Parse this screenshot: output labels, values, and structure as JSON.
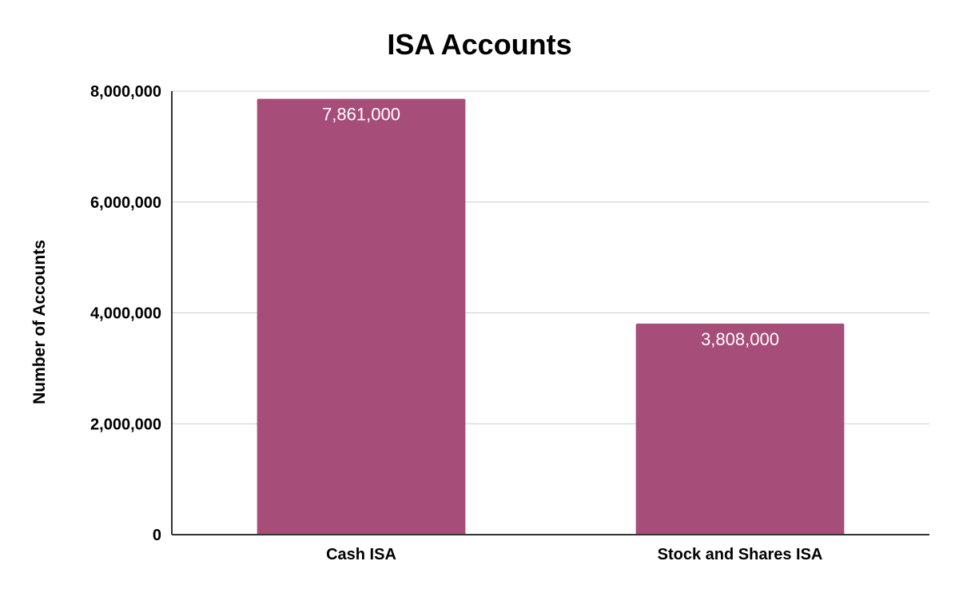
{
  "chart_data": {
    "type": "bar",
    "title": "ISA Accounts",
    "xlabel": "",
    "ylabel": "Number of Accounts",
    "categories": [
      "Cash ISA",
      "Stock and Shares ISA"
    ],
    "values": [
      7861000,
      3808000
    ],
    "data_labels": [
      "7,861,000",
      "3,808,000"
    ],
    "ylim": [
      0,
      8000000
    ],
    "yticks": [
      0,
      2000000,
      4000000,
      6000000,
      8000000
    ],
    "ytick_labels": [
      "0",
      "2,000,000",
      "4,000,000",
      "6,000,000",
      "8,000,000"
    ],
    "bar_color": "#a64d79",
    "grid": true,
    "legend": "none"
  }
}
